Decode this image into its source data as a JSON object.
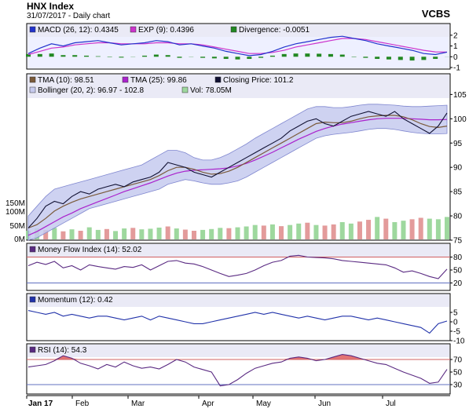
{
  "header": {
    "title": "HNX Index",
    "subtitle": "31/07/2017 - Daily chart",
    "brand": "VCBS"
  },
  "colors": {
    "macd": "#2233cc",
    "exp": "#cc33cc",
    "divergence": "#228822",
    "tma10": "#7a5a3a",
    "tma25": "#aa22cc",
    "close": "#111133",
    "bollinger_fill": "#c6caee",
    "bollinger_edge": "#7f86cf",
    "volume_up": "#9ed89e",
    "volume_down": "#e39b9b",
    "mfi": "#5a2a82",
    "momentum": "#2233aa",
    "rsi": "#5a2a82",
    "overbought_fill": "#e06565"
  },
  "chart_data": [
    {
      "type": "line",
      "name": "MACD",
      "legend": [
        {
          "label": "MACD (26, 12): 0.4345",
          "color": "#2233cc"
        },
        {
          "label": "EXP (9): 0.4396",
          "color": "#cc33cc"
        },
        {
          "label": "Divergence: -0.0051",
          "color": "#228822"
        }
      ],
      "ylim": [
        -1,
        2.5
      ],
      "yticks": [
        2,
        1,
        0,
        -1
      ],
      "macd": [
        0.3,
        0.8,
        1.2,
        1.0,
        1.3,
        1.4,
        1.5,
        1.3,
        1.1,
        1.2,
        1.3,
        1.5,
        1.4,
        1.1,
        1.2,
        1.0,
        0.8,
        0.5,
        0.3,
        0.1,
        0.2,
        0.5,
        0.9,
        1.2,
        1.4,
        1.6,
        1.8,
        1.9,
        1.7,
        1.5,
        1.2,
        1.0,
        0.8,
        0.6,
        0.3,
        0.2,
        0.43
      ],
      "exp": [
        0.2,
        0.5,
        0.8,
        0.9,
        1.1,
        1.2,
        1.3,
        1.3,
        1.2,
        1.2,
        1.2,
        1.3,
        1.3,
        1.2,
        1.2,
        1.1,
        0.9,
        0.7,
        0.5,
        0.3,
        0.3,
        0.4,
        0.6,
        0.9,
        1.1,
        1.3,
        1.5,
        1.7,
        1.7,
        1.6,
        1.4,
        1.2,
        1.0,
        0.8,
        0.6,
        0.45,
        0.44
      ],
      "divergence": [
        0.25,
        0.25,
        0.3,
        0.15,
        0.15,
        0.1,
        0.05,
        0.0,
        -0.08,
        0.02,
        0.1,
        0.2,
        0.15,
        -0.1,
        0.02,
        -0.1,
        -0.15,
        -0.2,
        -0.25,
        -0.2,
        -0.1,
        0.1,
        0.25,
        0.3,
        0.3,
        0.28,
        0.25,
        0.2,
        0.0,
        -0.1,
        -0.2,
        -0.25,
        -0.3,
        -0.35,
        -0.3,
        -0.2,
        -0.01
      ]
    },
    {
      "type": "line",
      "name": "Price",
      "legend": [
        {
          "label": "TMA (10): 98.51",
          "color": "#7a5a3a"
        },
        {
          "label": "TMA (25): 99.86",
          "color": "#aa22cc"
        },
        {
          "label": "Closing Price: 101.2",
          "color": "#111133"
        },
        {
          "label": "Bollinger (20, 2): 96.97 - 102.8",
          "color": "#c6caee"
        },
        {
          "label": "Vol: 78.05M",
          "color": "#9ed89e"
        }
      ],
      "ylim": [
        75,
        107
      ],
      "yticks": [
        105,
        100,
        95,
        90,
        85,
        80,
        75
      ],
      "volume_ticks": [
        "150M",
        "100M",
        "50M",
        "0M"
      ],
      "volume_ylim": [
        0,
        150
      ],
      "close": [
        77.5,
        79.5,
        82,
        83,
        82.5,
        84,
        85,
        84.5,
        85.5,
        86,
        86.5,
        86,
        87,
        87.5,
        88,
        89,
        91,
        90.5,
        90,
        89,
        88.5,
        88,
        89,
        90,
        91,
        92,
        93,
        94,
        95,
        96,
        97.5,
        98.5,
        99.5,
        100,
        99,
        98.5,
        99.5,
        100.5,
        101,
        101.5,
        101,
        100.5,
        101.5,
        100,
        99,
        98,
        97,
        98.5,
        101.2
      ],
      "tma10": [
        77.5,
        78.2,
        79.5,
        81,
        82,
        82.8,
        83.5,
        84,
        84.5,
        85,
        85.5,
        86,
        86.5,
        87,
        87.5,
        88.3,
        89.3,
        90,
        90,
        89.6,
        89,
        88.6,
        88.7,
        89.2,
        90,
        91,
        92,
        93,
        94,
        95,
        96,
        97,
        98,
        99,
        99.3,
        99.2,
        99.2,
        99.5,
        100,
        100.4,
        100.6,
        100.7,
        100.7,
        100.4,
        99.8,
        99,
        98.4,
        98.2,
        98.5
      ],
      "tma25": [
        76,
        76.8,
        77.8,
        78.8,
        79.8,
        80.6,
        81.5,
        82.2,
        82.9,
        83.6,
        84.3,
        85,
        85.6,
        86.2,
        86.8,
        87.5,
        88.2,
        88.8,
        89.2,
        89.4,
        89.5,
        89.6,
        89.7,
        89.9,
        90.3,
        90.8,
        91.5,
        92.3,
        93.1,
        94,
        94.9,
        95.8,
        96.6,
        97.4,
        98,
        98.5,
        98.9,
        99.2,
        99.5,
        99.8,
        100,
        100.1,
        100.1,
        100.1,
        100,
        99.9,
        99.8,
        99.8,
        99.86
      ],
      "boll_upper": [
        80,
        82,
        84,
        85.5,
        86,
        86.5,
        87,
        87.5,
        88,
        88.5,
        89,
        89.5,
        90,
        90.5,
        91.5,
        92.5,
        93.5,
        93.5,
        93,
        92,
        91.5,
        91.5,
        92,
        92.8,
        93.8,
        94.8,
        96,
        97,
        98,
        99,
        100,
        101,
        102,
        102.5,
        102.5,
        102.3,
        102.3,
        102.5,
        102.8,
        103,
        103,
        102.9,
        102.8,
        102.6,
        102.5,
        102.5,
        102.6,
        102.7,
        102.8
      ],
      "boll_lower": [
        75,
        75.5,
        76.5,
        77.5,
        78.5,
        79.5,
        80.5,
        81.5,
        82,
        82.5,
        83,
        83.5,
        84,
        84.5,
        85,
        85.5,
        86.5,
        87,
        87.5,
        87.2,
        86.8,
        86.5,
        86.5,
        86.8,
        87.2,
        88,
        89,
        90,
        91,
        92,
        93,
        94,
        95,
        96,
        96.5,
        96.8,
        97,
        97.2,
        97.5,
        97.8,
        98,
        98,
        97.8,
        97.5,
        97.2,
        97,
        96.9,
        96.9,
        96.97
      ],
      "volume": [
        30,
        38,
        33,
        40,
        28,
        35,
        30,
        42,
        33,
        36,
        29,
        38,
        40,
        35,
        37,
        41,
        45,
        38,
        34,
        30,
        33,
        36,
        40,
        39,
        42,
        45,
        50,
        48,
        52,
        46,
        50,
        55,
        58,
        50,
        48,
        52,
        60,
        55,
        62,
        68,
        78,
        72,
        60,
        65,
        70,
        75,
        72,
        70,
        78
      ],
      "volume_up": [
        1,
        1,
        0,
        1,
        0,
        1,
        0,
        1,
        1,
        0,
        1,
        1,
        0,
        1,
        1,
        1,
        0,
        1,
        0,
        0,
        1,
        1,
        1,
        0,
        1,
        1,
        1,
        0,
        1,
        0,
        1,
        1,
        0,
        1,
        0,
        0,
        1,
        1,
        0,
        0,
        1,
        0,
        1,
        1,
        0,
        0,
        1,
        1,
        1
      ]
    },
    {
      "type": "line",
      "name": "MFI",
      "legend": [
        {
          "label": "Money Flow Index (14): 52.02",
          "color": "#5a2a82"
        }
      ],
      "ylim": [
        10,
        90
      ],
      "yticks": [
        80,
        50,
        20
      ],
      "ref_lines": [
        80,
        20
      ],
      "values": [
        60,
        68,
        63,
        70,
        55,
        60,
        50,
        62,
        58,
        55,
        52,
        58,
        56,
        62,
        50,
        60,
        70,
        72,
        66,
        64,
        58,
        50,
        42,
        35,
        38,
        42,
        50,
        60,
        68,
        72,
        82,
        84,
        80,
        79,
        78,
        76,
        72,
        70,
        68,
        66,
        64,
        62,
        55,
        45,
        48,
        42,
        35,
        30,
        52
      ]
    },
    {
      "type": "line",
      "name": "Momentum",
      "legend": [
        {
          "label": "Momentum (12): 0.42",
          "color": "#2233aa"
        }
      ],
      "ylim": [
        -10,
        10
      ],
      "yticks": [
        5,
        0,
        -5,
        -10
      ],
      "values": [
        6,
        5,
        4,
        5,
        3,
        4,
        3,
        2,
        3,
        3,
        2,
        1,
        2,
        3,
        1,
        3,
        2,
        1,
        0,
        -1,
        -1,
        0,
        1,
        2,
        3,
        4,
        5,
        4,
        5,
        4,
        3,
        2,
        3,
        2,
        1,
        2,
        3,
        3,
        2,
        1,
        2,
        1,
        0,
        -1,
        -2,
        -3,
        -6,
        -1,
        0.42
      ]
    },
    {
      "type": "line",
      "name": "RSI",
      "legend": [
        {
          "label": "RSI (14): 54.3",
          "color": "#5a2a82"
        }
      ],
      "ylim": [
        20,
        80
      ],
      "yticks": [
        70,
        50,
        30
      ],
      "ref_lines": [
        70,
        30
      ],
      "values": [
        58,
        60,
        62,
        68,
        76,
        72,
        64,
        60,
        55,
        62,
        58,
        66,
        60,
        56,
        58,
        55,
        62,
        70,
        66,
        58,
        54,
        50,
        28,
        30,
        38,
        48,
        56,
        60,
        64,
        66,
        72,
        74,
        72,
        68,
        70,
        74,
        78,
        76,
        72,
        68,
        64,
        62,
        56,
        50,
        45,
        40,
        32,
        34,
        54.3
      ]
    },
    {
      "type": "axis",
      "x_labels": [
        "Jan 17",
        "Feb",
        "Mar",
        "Apr",
        "May",
        "Jun",
        "Jul"
      ]
    }
  ]
}
